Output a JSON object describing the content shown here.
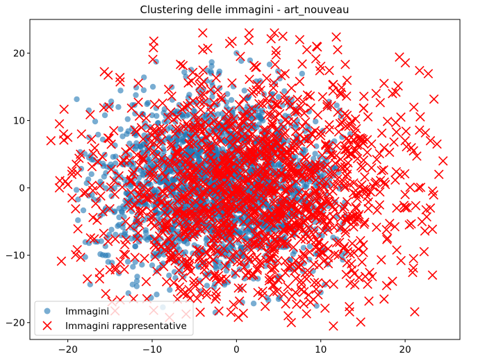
{
  "chart_data": {
    "type": "scatter",
    "title": "Clustering delle immagini - art_nouveau",
    "xlabel": "",
    "ylabel": "",
    "xlim": [
      -24.5,
      26.5
    ],
    "ylim": [
      -22.5,
      25
    ],
    "xticks": [
      -20,
      -10,
      0,
      10,
      20
    ],
    "yticks": [
      -20,
      -10,
      0,
      10,
      20
    ],
    "grid": false,
    "legend_position": "lower-left",
    "series": [
      {
        "name": "Immagini",
        "marker": "circle",
        "color": "#1f77b4",
        "alpha": 0.6,
        "cloud": {
          "n": 2200,
          "center": [
            -2,
            0.5
          ],
          "sd": [
            7,
            6.5
          ],
          "clip_x": [
            -19,
            13
          ],
          "clip_y": [
            -19,
            20
          ]
        },
        "points": [
          [
            -17.5,
            7.5
          ],
          [
            -17.5,
            4.5
          ],
          [
            -16,
            0.5
          ],
          [
            -16.5,
            -8
          ],
          [
            -12,
            -11
          ],
          [
            -10,
            -11.5
          ],
          [
            -8,
            -13
          ],
          [
            -3.5,
            -14.5
          ],
          [
            -2.5,
            -18.5
          ],
          [
            -1,
            -14
          ],
          [
            0.5,
            -15
          ],
          [
            5,
            -16.5
          ],
          [
            9.5,
            -17.5
          ],
          [
            10,
            -15.5
          ],
          [
            0,
            20
          ],
          [
            -3,
            17
          ],
          [
            -6,
            16.5
          ],
          [
            -11,
            14.5
          ],
          [
            -14,
            12
          ],
          [
            -13,
            8
          ],
          [
            12.5,
            -10
          ],
          [
            13.5,
            8
          ],
          [
            11,
            12
          ],
          [
            7,
            11
          ],
          [
            5,
            13.5
          ]
        ]
      },
      {
        "name": "Immagini rappresentative",
        "marker": "x",
        "color": "#ff0000",
        "cloud": {
          "n": 1500,
          "center": [
            2,
            0
          ],
          "sd": [
            9,
            8.5
          ],
          "clip_x": [
            -21,
            24
          ],
          "clip_y": [
            -20,
            23
          ]
        },
        "points": [
          [
            -22,
            7
          ],
          [
            -21,
            9.5
          ],
          [
            -20.5,
            8
          ],
          [
            -20,
            7.5
          ],
          [
            -21,
            0
          ],
          [
            -20,
            0.5
          ],
          [
            -19.5,
            -1.5
          ],
          [
            -19.5,
            2.5
          ],
          [
            -19,
            3.5
          ],
          [
            -18.5,
            5
          ],
          [
            -4,
            23
          ],
          [
            -4,
            20.5
          ],
          [
            1.5,
            23
          ],
          [
            4.5,
            23
          ],
          [
            5.5,
            22.5
          ],
          [
            7.5,
            22
          ],
          [
            9.5,
            21
          ],
          [
            12,
            20.5
          ],
          [
            11.5,
            -20.5
          ],
          [
            6.5,
            -20
          ],
          [
            -7,
            -16.5
          ],
          [
            -2.5,
            -16.5
          ],
          [
            17.5,
            -16.5
          ],
          [
            21,
            -10.5
          ],
          [
            22,
            -5
          ],
          [
            23,
            -3
          ],
          [
            23,
            7
          ],
          [
            24,
            2
          ],
          [
            24.5,
            4
          ],
          [
            21,
            5.5
          ],
          [
            20,
            7
          ],
          [
            19.5,
            10.5
          ],
          [
            18.5,
            14
          ],
          [
            17.5,
            15.5
          ],
          [
            20.5,
            -5.5
          ],
          [
            19,
            -3
          ],
          [
            20,
            -1
          ]
        ]
      }
    ]
  }
}
